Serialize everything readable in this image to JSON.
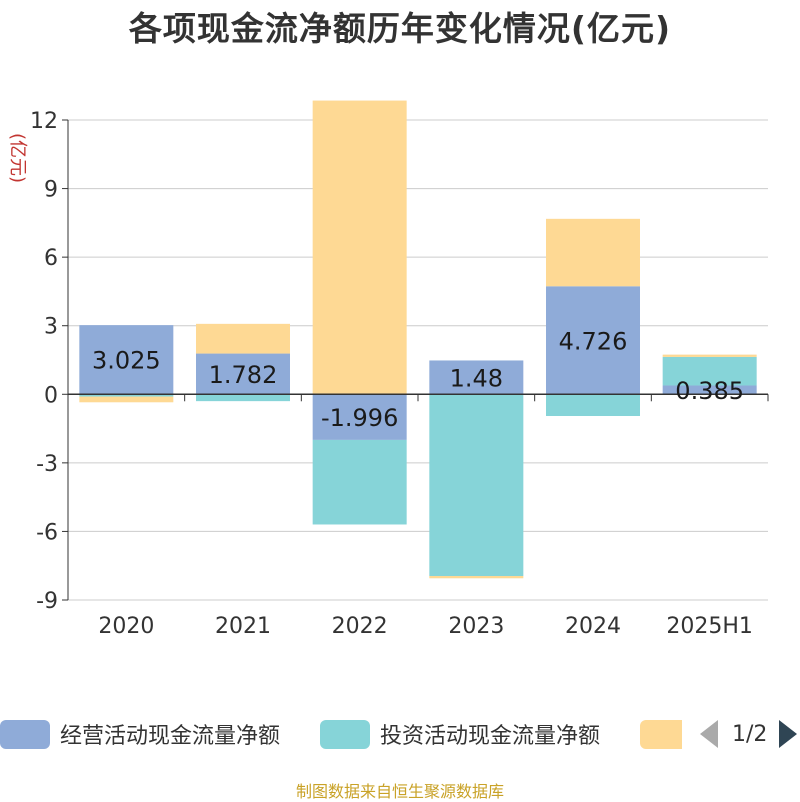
{
  "chart_data": {
    "type": "bar",
    "stacked": true,
    "title": "各项现金流净额历年变化情况(亿元)",
    "ylabel": "(亿元)",
    "categories": [
      "2020",
      "2021",
      "2022",
      "2023",
      "2024",
      "2025H1"
    ],
    "ylim": [
      -9,
      12
    ],
    "yticks": [
      -9,
      -6,
      -3,
      0,
      3,
      6,
      9,
      12
    ],
    "grid": true,
    "legend_position": "bottom",
    "series": [
      {
        "name": "经营活动现金流量净额",
        "color": "#8fabd8",
        "values": [
          3.025,
          1.782,
          -1.996,
          1.48,
          4.726,
          0.385
        ],
        "labels": [
          "3.025",
          "1.782",
          "-1.996",
          "1.48",
          "4.726",
          "0.385"
        ]
      },
      {
        "name": "投资活动现金流量净额",
        "color": "#86d4d8",
        "values": [
          -0.1,
          -0.3,
          -3.7,
          -7.95,
          -0.95,
          1.25
        ]
      },
      {
        "name": "",
        "color": "#fed994",
        "values": [
          -0.25,
          1.3,
          12.85,
          -0.1,
          2.95,
          0.1
        ]
      }
    ]
  },
  "legend": {
    "pager": "1/2"
  },
  "footer": {
    "source": "制图数据来自恒生聚源数据库"
  }
}
